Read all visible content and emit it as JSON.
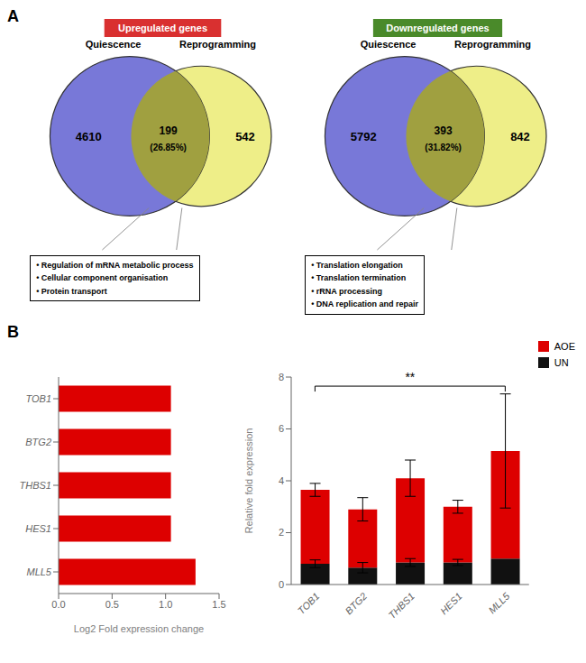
{
  "chart_data": [
    {
      "type": "venn",
      "panel_label": "A",
      "title": "Upregulated genes",
      "color": "#d93030",
      "colors": [
        "#7878d8",
        "#eeee88",
        "#a0a040"
      ],
      "edge_color": "#333333",
      "set_labels": [
        "Quiescence",
        "Reprogramming"
      ],
      "values": [
        4610,
        199,
        542
      ],
      "intersection_share": {
        "value": 26.85,
        "label": "(26.85%)"
      },
      "annotations": [
        "• Regulation of mRNA metabolic process",
        "• Cellular component organisation",
        "• Protein transport"
      ]
    },
    {
      "type": "venn",
      "title": "Downregulated genes",
      "color": "#4a8a2a",
      "colors": [
        "#7878d8",
        "#eeee88",
        "#a0a040"
      ],
      "edge_color": "#333333",
      "set_labels": [
        "Quiescence",
        "Reprogramming"
      ],
      "values": [
        5792,
        393,
        842
      ],
      "intersection_share": {
        "value": 31.82,
        "label": "(31.82%)"
      },
      "annotations": [
        "• Translation elongation",
        "• Translation termination",
        "• rRNA processing",
        "• DNA replication and repair"
      ]
    },
    {
      "type": "bar",
      "panel_label": "B",
      "orientation": "horizontal",
      "categories": [
        "MLL5",
        "HES1",
        "THBS1",
        "BTG2",
        "TOB1"
      ],
      "values": [
        1.28,
        1.05,
        1.05,
        1.05,
        1.05
      ],
      "color": "#dd0000",
      "x_label": "Log2 Fold expression change",
      "xlim": [
        0,
        1.5
      ],
      "xticks": [
        {
          "value": 0,
          "label": "0.0"
        },
        0.5,
        {
          "value": 1,
          "label": "1.0"
        },
        1.5
      ],
      "grid": false
    },
    {
      "type": "bar",
      "stacked": true,
      "categories": [
        "TOB1",
        "BTG2",
        "THBS1",
        "HES1",
        "MLL5"
      ],
      "series": [
        {
          "name": "UN",
          "color": "#111111",
          "values": [
            0.8,
            0.65,
            0.85,
            0.85,
            1.0
          ],
          "errors": [
            0.15,
            0.2,
            0.15,
            0.12,
            0.0
          ]
        },
        {
          "name": "AOE",
          "color": "#dd0000",
          "values": [
            2.85,
            2.25,
            3.25,
            2.15,
            4.15
          ],
          "errors": [
            0.25,
            0.45,
            0.7,
            0.25,
            2.2
          ]
        }
      ],
      "y_label": "Relative fold expression",
      "ylim": [
        0,
        8
      ],
      "yticks": [
        0,
        2,
        4,
        6,
        8
      ],
      "legend": "upper right",
      "grid": false,
      "significance": {
        "label": "**",
        "from": "TOB1",
        "to": "MLL5",
        "y": 7.65
      }
    }
  ]
}
